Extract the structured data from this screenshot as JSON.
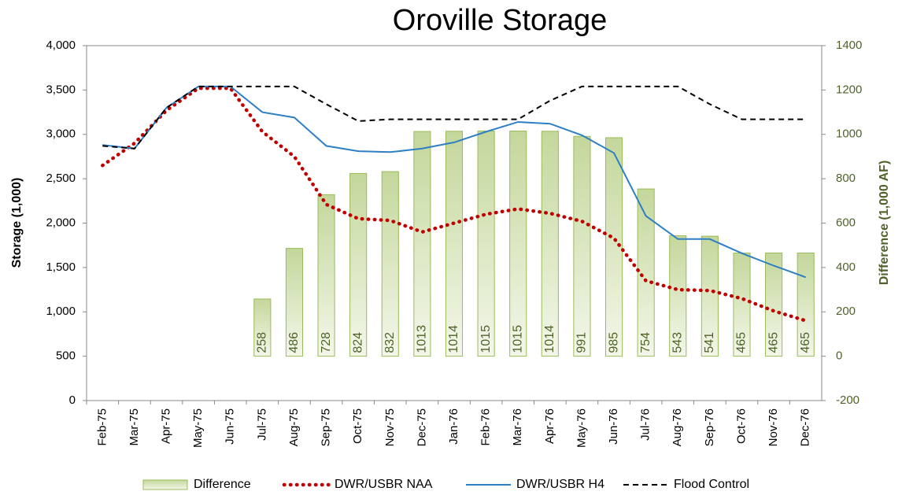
{
  "chart_data": {
    "type": "combo",
    "title": "Oroville Storage",
    "y_label": "Storage (1,000)",
    "y2_label": "Difference (1,000 AF)",
    "categories": [
      "Feb-75",
      "Mar-75",
      "Apr-75",
      "May-75",
      "Jun-75",
      "Jul-75",
      "Aug-75",
      "Sep-75",
      "Oct-75",
      "Nov-75",
      "Dec-75",
      "Jan-76",
      "Feb-76",
      "Mar-76",
      "Apr-76",
      "May-76",
      "Jun-76",
      "Jul-76",
      "Aug-76",
      "Sep-76",
      "Oct-76",
      "Nov-76",
      "Dec-76"
    ],
    "ylim": [
      0,
      4000
    ],
    "yticks": [
      0,
      500,
      {
        "value": 1000,
        "label": "1,000"
      },
      {
        "value": 1500,
        "label": "1,500"
      },
      {
        "value": 2000,
        "label": "2,000"
      },
      {
        "value": 2500,
        "label": "2,500"
      },
      {
        "value": 3000,
        "label": "3,000"
      },
      {
        "value": 3500,
        "label": "3,500"
      },
      {
        "value": 4000,
        "label": "4,000"
      }
    ],
    "y2lim": [
      -200,
      1400
    ],
    "y2ticks": [
      -200,
      0,
      200,
      400,
      600,
      800,
      1000,
      1200,
      1400
    ],
    "grid": false,
    "series": [
      {
        "name": "Difference",
        "type": "bar",
        "axis": "y2",
        "color": "#9bbb59",
        "values": [
          null,
          null,
          null,
          null,
          null,
          258,
          486,
          728,
          824,
          832,
          1013,
          1014,
          1015,
          1015,
          1014,
          991,
          985,
          754,
          543,
          541,
          465,
          465,
          465
        ]
      },
      {
        "name": "DWR/USBR NAA",
        "type": "line",
        "style": "dotted",
        "color": "#c00000",
        "values": [
          2650,
          2900,
          3270,
          3520,
          3520,
          3030,
          2750,
          2210,
          2050,
          2030,
          1900,
          2000,
          2100,
          2160,
          2110,
          2020,
          1830,
          1350,
          1250,
          1240,
          1150,
          1010,
          900
        ]
      },
      {
        "name": "DWR/USBR H4",
        "type": "line",
        "style": "solid",
        "color": "#2e7fc4",
        "values": [
          2880,
          2840,
          3300,
          3540,
          3540,
          3250,
          3190,
          2870,
          2810,
          2800,
          2840,
          2910,
          3030,
          3140,
          3120,
          2990,
          2790,
          2080,
          1820,
          1820,
          1660,
          1520,
          1390
        ]
      },
      {
        "name": "Flood Control",
        "type": "line",
        "style": "dashed",
        "color": "#000000",
        "values": [
          2870,
          2840,
          3300,
          3540,
          3540,
          3540,
          3540,
          3340,
          3150,
          3170,
          3170,
          3170,
          3170,
          3170,
          3380,
          3540,
          3540,
          3540,
          3540,
          3340,
          3170,
          3170,
          3170
        ]
      }
    ]
  }
}
